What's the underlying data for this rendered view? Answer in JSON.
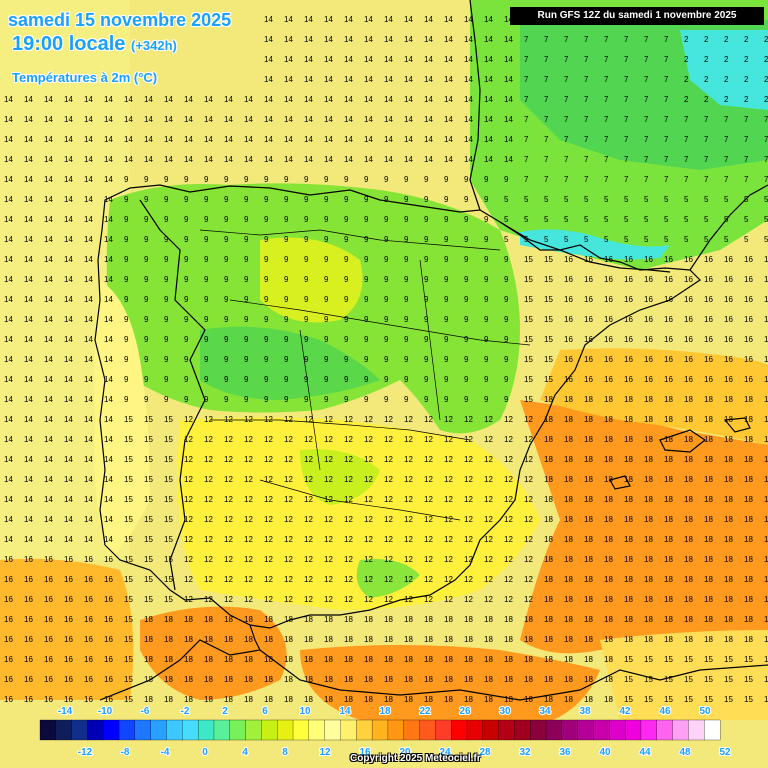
{
  "header": {
    "date": "samedi 15 novembre 2025",
    "time": "19:00 locale",
    "offset": "(+342h)",
    "parameter": "Températures à 2m (°C)",
    "run": "Run GFS 12Z du samedi 1 novembre 2025"
  },
  "footer": {
    "copyright": "Copyright 2025 Meteociel.fr"
  },
  "legend": {
    "top_labels": [
      "-14",
      "-10",
      "-6",
      "-2",
      "2",
      "6",
      "10",
      "14",
      "18",
      "22",
      "26",
      "30",
      "34",
      "38",
      "42",
      "46",
      "50"
    ],
    "bottom_labels": [
      "-12",
      "-8",
      "-4",
      "0",
      "4",
      "8",
      "12",
      "16",
      "20",
      "24",
      "28",
      "32",
      "36",
      "40",
      "44",
      "48",
      "52"
    ],
    "colors": [
      "#0a0a3c",
      "#0f1e5a",
      "#102e8a",
      "#0000b4",
      "#0000ff",
      "#1046ff",
      "#1e78ff",
      "#28a0ff",
      "#3cc8ff",
      "#46dcff",
      "#3ce8c8",
      "#5aef9a",
      "#78f05a",
      "#a0f03c",
      "#c8f014",
      "#e6f014",
      "#ffff3c",
      "#ffff78",
      "#ffffa0",
      "#fff06e",
      "#ffd23c",
      "#ffb41e",
      "#ff9614",
      "#ff7814",
      "#ff5a1e",
      "#ff3c28",
      "#ff0000",
      "#e60000",
      "#c80000",
      "#b40014",
      "#a0001e",
      "#8c003c",
      "#8c005a",
      "#a0007a",
      "#b40096",
      "#c800aa",
      "#dc00c8",
      "#f000dc",
      "#ff28f0",
      "#ff64f0",
      "#ffa0f5",
      "#ffd2fa",
      "#ffffff"
    ]
  },
  "colors": {
    "green_dark": "#46d246",
    "green": "#78e632",
    "yellow_green": "#c8f01e",
    "yellow": "#fff03c",
    "pale_yellow": "#fff582",
    "light_orange": "#ffc832",
    "orange": "#ff9a1e",
    "cyan": "#46e6dc",
    "sea_cool": "#d2f01e"
  },
  "map_elements": {
    "grid_values_note": "",
    "border_color": "#000000"
  }
}
